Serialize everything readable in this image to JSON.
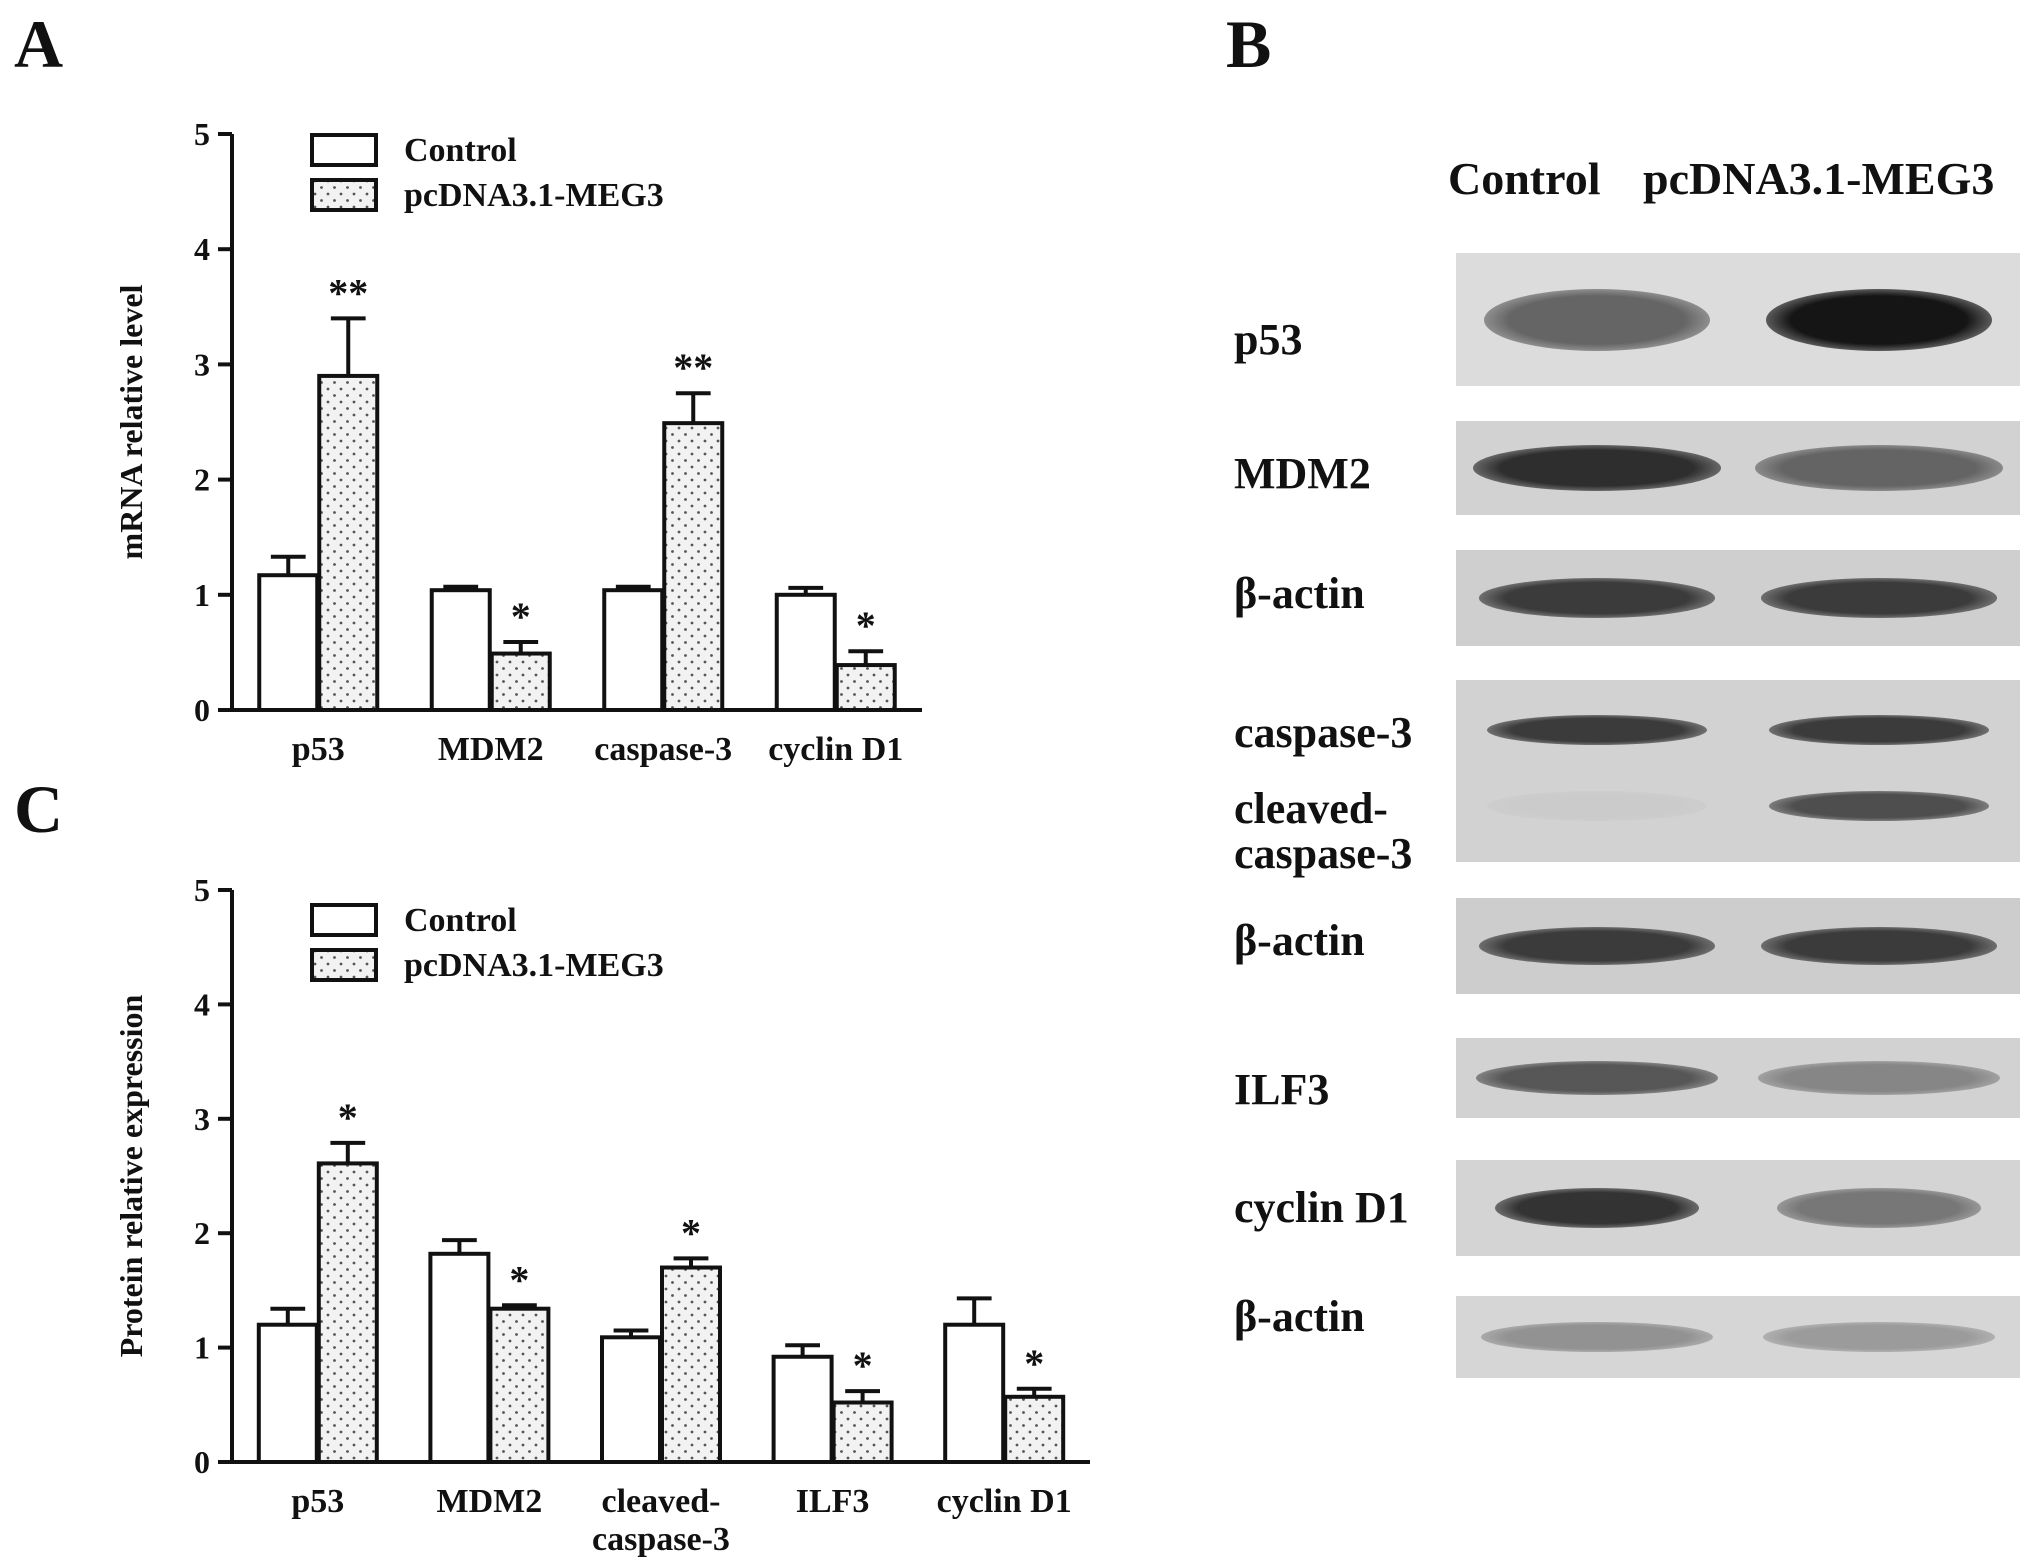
{
  "panels": {
    "a": {
      "letter": "A"
    },
    "b": {
      "letter": "B"
    },
    "c": {
      "letter": "C"
    }
  },
  "chart_data": [
    {
      "type": "bar",
      "panel": "A",
      "ylabel": "mRNA relative level",
      "ylim": [
        0,
        5
      ],
      "yticks": [
        "0",
        "1",
        "2",
        "3",
        "4",
        "5"
      ],
      "categories": [
        "p53",
        "MDM2",
        "caspase-3",
        "cyclin D1"
      ],
      "series": [
        {
          "name": "Control",
          "values": [
            1.17,
            1.04,
            1.04,
            1.0
          ],
          "errors": [
            0.16,
            0.03,
            0.03,
            0.06
          ]
        },
        {
          "name": "pcDNA3.1-MEG3",
          "values": [
            2.9,
            0.49,
            2.49,
            0.39
          ],
          "errors": [
            0.5,
            0.1,
            0.26,
            0.12
          ]
        }
      ],
      "significance": [
        "**",
        "*",
        "**",
        "*"
      ],
      "legend_position": "top-left",
      "colors": {
        "control_fill": "#ffffff",
        "treatment_fill": "#f2f2f2",
        "stroke": "#111111"
      }
    },
    {
      "type": "bar",
      "panel": "C",
      "ylabel": "Protein relative expression",
      "ylim": [
        0,
        5
      ],
      "yticks": [
        "0",
        "1",
        "2",
        "3",
        "4",
        "5"
      ],
      "categories": [
        "p53",
        "MDM2",
        "cleaved-caspase-3",
        "ILF3",
        "cyclin D1"
      ],
      "category_lines": [
        [
          "p53"
        ],
        [
          "MDM2"
        ],
        [
          "cleaved-",
          "caspase-3"
        ],
        [
          "ILF3"
        ],
        [
          "cyclin D1"
        ]
      ],
      "series": [
        {
          "name": "Control",
          "values": [
            1.2,
            1.82,
            1.09,
            0.92,
            1.2
          ],
          "errors": [
            0.14,
            0.12,
            0.06,
            0.1,
            0.23
          ]
        },
        {
          "name": "pcDNA3.1-MEG3",
          "values": [
            2.61,
            1.34,
            1.7,
            0.52,
            0.57
          ],
          "errors": [
            0.18,
            0.03,
            0.08,
            0.1,
            0.07
          ]
        }
      ],
      "significance": [
        "*",
        "*",
        "*",
        "*",
        "*"
      ],
      "legend_position": "top-left",
      "colors": {
        "control_fill": "#ffffff",
        "treatment_fill": "#f2f2f2",
        "stroke": "#111111"
      }
    }
  ],
  "blot": {
    "lane_headers": [
      "Control",
      "pcDNA3.1-MEG3"
    ],
    "rows": [
      {
        "label": [
          "p53"
        ],
        "intensity": [
          0.7,
          0.98
        ]
      },
      {
        "label": [
          "MDM2"
        ],
        "intensity": [
          0.9,
          0.7
        ]
      },
      {
        "label": [
          "β-actin"
        ],
        "intensity": [
          0.85,
          0.85
        ]
      },
      {
        "label": [
          "caspase-3"
        ],
        "intensity": [
          0.85,
          0.85
        ]
      },
      {
        "label": [
          "cleaved-",
          "caspase-3"
        ],
        "intensity": [
          0.15,
          0.78
        ]
      },
      {
        "label": [
          "β-actin"
        ],
        "intensity": [
          0.85,
          0.85
        ]
      },
      {
        "label": [
          "ILF3"
        ],
        "intensity": [
          0.75,
          0.55
        ]
      },
      {
        "label": [
          "cyclin D1"
        ],
        "intensity": [
          0.88,
          0.62
        ]
      },
      {
        "label": [
          "β-actin"
        ],
        "intensity": [
          0.5,
          0.45
        ]
      }
    ]
  }
}
